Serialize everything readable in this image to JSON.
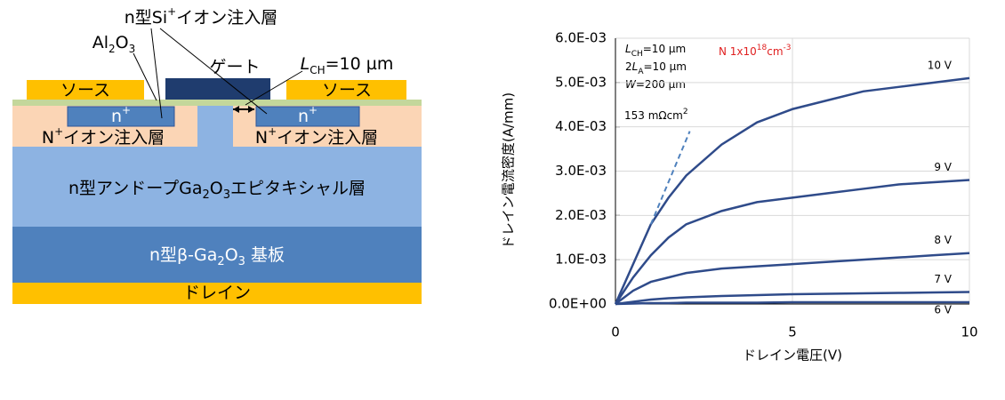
{
  "diagram": {
    "si_implant": [
      "n型Si",
      "+",
      "イオン注入層"
    ],
    "al2o3": [
      "Al",
      "2",
      "O",
      "3"
    ],
    "gate": "ゲート",
    "lch": [
      "L",
      "CH",
      "=10 µm"
    ],
    "source_left": "ソース",
    "source_right": "ソース",
    "nplus_left": [
      "n",
      "+"
    ],
    "nplus_right": [
      "n",
      "+"
    ],
    "implant_left": [
      "N",
      "+",
      "イオン注入層"
    ],
    "implant_right": [
      "N",
      "+",
      "イオン注入層"
    ],
    "epi": [
      "n型アンドープGa",
      "2",
      "O",
      "3",
      "エピタキシャル層"
    ],
    "substrate": [
      "n型β-Ga",
      "2",
      "O",
      "3",
      " 基板"
    ],
    "drain": "ドレイン"
  },
  "chart_data": {
    "type": "line",
    "x_label": "ドレイン電圧(V)",
    "y_label": "ドレイン電流密度(A/mm)",
    "x": [
      0,
      0.5,
      1,
      1.5,
      2,
      3,
      4,
      5,
      6,
      7,
      8,
      9,
      10
    ],
    "series": [
      {
        "name": "6 V",
        "color": "#2f4b8a",
        "values": [
          0,
          1e-05,
          2e-05,
          2e-05,
          3e-05,
          3e-05,
          3e-05,
          4e-05,
          4e-05,
          4e-05,
          4e-05,
          4e-05,
          4e-05
        ]
      },
      {
        "name": "7 V",
        "color": "#2f4b8a",
        "values": [
          0,
          5e-05,
          0.0001,
          0.00013,
          0.00015,
          0.00018,
          0.0002,
          0.00022,
          0.00023,
          0.00024,
          0.00025,
          0.00026,
          0.00027
        ]
      },
      {
        "name": "8 V",
        "color": "#2f4b8a",
        "values": [
          0,
          0.0003,
          0.0005,
          0.0006,
          0.0007,
          0.0008,
          0.00085,
          0.0009,
          0.00095,
          0.001,
          0.00105,
          0.0011,
          0.00115
        ]
      },
      {
        "name": "9 V",
        "color": "#2f4b8a",
        "values": [
          0,
          0.0006,
          0.0011,
          0.0015,
          0.0018,
          0.0021,
          0.0023,
          0.0024,
          0.0025,
          0.0026,
          0.0027,
          0.00275,
          0.0028
        ]
      },
      {
        "name": "10 V",
        "color": "#2f4b8a",
        "values": [
          0,
          0.0009,
          0.0018,
          0.0024,
          0.0029,
          0.0036,
          0.0041,
          0.0044,
          0.0046,
          0.0048,
          0.0049,
          0.005,
          0.0051
        ]
      }
    ],
    "fit_line": {
      "x": [
        1,
        2.1
      ],
      "values": [
        0.0018,
        0.0039
      ],
      "label": [
        "153 mΩcm",
        "2"
      ],
      "color": "#4f81bd"
    },
    "params": [
      [
        "L",
        "CH",
        "=10 µm"
      ],
      [
        "2",
        "L",
        "A",
        "=10 µm"
      ],
      [
        "W",
        "=200 µm"
      ]
    ],
    "note": [
      "N 1x10",
      "18",
      "cm",
      "-3"
    ],
    "xlim": [
      0,
      10
    ],
    "xticks": [
      0,
      5,
      10
    ],
    "ylim": [
      0,
      0.006
    ],
    "yticks": [
      {
        "value": 0,
        "label": "0.0E+00"
      },
      {
        "value": 0.001,
        "label": "1.0E-03"
      },
      {
        "value": 0.002,
        "label": "2.0E-03"
      },
      {
        "value": 0.003,
        "label": "3.0E-03"
      },
      {
        "value": 0.004,
        "label": "4.0E-03"
      },
      {
        "value": 0.005,
        "label": "5.0E-03"
      },
      {
        "value": 0.006,
        "label": "6.0E-03"
      }
    ],
    "grid": true
  }
}
